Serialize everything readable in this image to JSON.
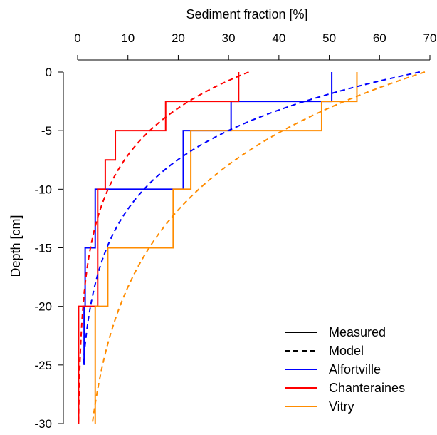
{
  "chart_data": {
    "type": "line",
    "xlabel": "Sediment fraction [%]",
    "ylabel": "Depth [cm]",
    "xlim": [
      0,
      70
    ],
    "ylim": [
      -30,
      0
    ],
    "x_axis_position": "top",
    "x_ticks": [
      0,
      10,
      20,
      30,
      40,
      50,
      60,
      70
    ],
    "y_ticks": [
      0,
      -5,
      -10,
      -15,
      -20,
      -25,
      -30
    ],
    "x_tick_labels": [
      "0",
      "10",
      "20",
      "30",
      "40",
      "50",
      "60",
      "70"
    ],
    "y_tick_labels": [
      "0",
      "-5",
      "-10",
      "-15",
      "-20",
      "-25",
      "-30"
    ],
    "grid": false,
    "legend": {
      "placement": "bottom-right",
      "entries": [
        {
          "label": "Measured",
          "color": "#000000",
          "style": "solid"
        },
        {
          "label": "Model",
          "color": "#000000",
          "style": "dashed"
        },
        {
          "label": "Alfortville",
          "color": "#0000FF",
          "style": "solid"
        },
        {
          "label": "Chanteraines",
          "color": "#FF0000",
          "style": "solid"
        },
        {
          "label": "Vitry",
          "color": "#FF8C00",
          "style": "solid"
        }
      ]
    },
    "series": [
      {
        "name": "Alfortville",
        "color": "#0000FF",
        "measured": [
          {
            "top": 0,
            "bottom": -2.5,
            "value": 50.5
          },
          {
            "top": -2.5,
            "bottom": -5,
            "value": 30.5
          },
          {
            "top": -5,
            "bottom": -10,
            "value": 21
          },
          {
            "top": -10,
            "bottom": -15,
            "value": 3.5
          },
          {
            "top": -15,
            "bottom": -20,
            "value": 1.5
          },
          {
            "top": -20,
            "bottom": -25,
            "value": 1.3
          }
        ],
        "model": {
          "surface_value": 68,
          "decay_depth": 6.1,
          "depth_range": [
            0,
            -25
          ]
        }
      },
      {
        "name": "Chanteraines",
        "color": "#FF0000",
        "measured": [
          {
            "top": 0,
            "bottom": -2.5,
            "value": 32
          },
          {
            "top": -2.5,
            "bottom": -5,
            "value": 17.5
          },
          {
            "top": -5,
            "bottom": -7.5,
            "value": 7.5
          },
          {
            "top": -7.5,
            "bottom": -10,
            "value": 5.5
          },
          {
            "top": -10,
            "bottom": -20,
            "value": 4
          },
          {
            "top": -20,
            "bottom": -30,
            "value": 0.2
          }
        ],
        "model": {
          "surface_value": 34,
          "decay_depth": 5.8,
          "depth_range": [
            0,
            -30
          ]
        }
      },
      {
        "name": "Vitry",
        "color": "#FF8C00",
        "measured": [
          {
            "top": 0,
            "bottom": -2.5,
            "value": 55.5
          },
          {
            "top": -2.5,
            "bottom": -5,
            "value": 48.5
          },
          {
            "top": -5,
            "bottom": -10,
            "value": 22.5
          },
          {
            "top": -10,
            "bottom": -15,
            "value": 19
          },
          {
            "top": -15,
            "bottom": -20,
            "value": 6
          },
          {
            "top": -20,
            "bottom": -30,
            "value": 3.5
          }
        ],
        "model": {
          "surface_value": 69,
          "decay_depth": 9.5,
          "depth_range": [
            0,
            -30
          ]
        }
      }
    ]
  }
}
